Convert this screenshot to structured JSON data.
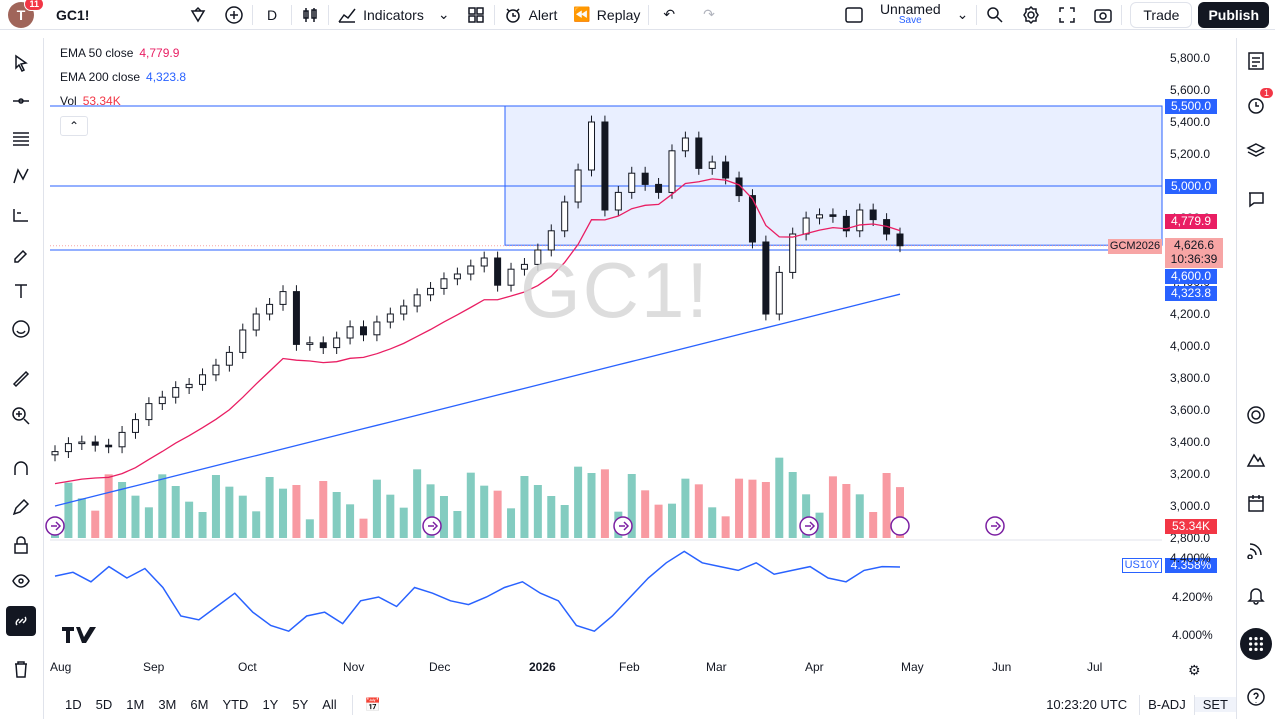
{
  "topbar": {
    "avatar_letter": "T",
    "notif_count": "11",
    "symbol": "GC1!",
    "interval": "D",
    "indicators_label": "Indicators",
    "alert_label": "Alert",
    "replay_label": "Replay",
    "layout_name": "Unnamed",
    "layout_save": "Save",
    "trade_label": "Trade",
    "publish_label": "Publish"
  },
  "legend": {
    "ema50_label": "EMA 50 close",
    "ema50_value": "4,779.9",
    "ema200_label": "EMA 200 close",
    "ema200_value": "4,323.8",
    "vol_label": "Vol",
    "vol_value": "53.34K"
  },
  "watermark": "GC1!",
  "price_ticks": [
    "5,800.0",
    "5,600.0",
    "5,400.0",
    "5,200.0",
    "5,000.0",
    "4,800.0",
    "4,600.0",
    "4,400.0",
    "4,200.0",
    "4,000.0",
    "3,800.0",
    "3,600.0",
    "3,400.0",
    "3,200.0",
    "3,000.0",
    "2,800.0"
  ],
  "price_tags": {
    "level_5500": "5,500.0",
    "level_5000": "5,000.0",
    "ema50": "4,779.9",
    "current_symbol": "GCM2026",
    "current_price": "4,626.6",
    "countdown": "10:36:39",
    "level_4600": "4,600.0",
    "ema200": "4,323.8",
    "volume": "53.34K"
  },
  "us10y": {
    "label": "US10Y",
    "value": "4.358%",
    "ticks": [
      "4.400%",
      "4.200%",
      "4.000%"
    ]
  },
  "time_labels": [
    "Aug",
    "Sep",
    "Oct",
    "Nov",
    "Dec",
    "2026",
    "Feb",
    "Mar",
    "Apr",
    "May",
    "Jun",
    "Jul"
  ],
  "bottom": {
    "ranges": [
      "1D",
      "5D",
      "1M",
      "3M",
      "6M",
      "YTD",
      "1Y",
      "5Y",
      "All"
    ],
    "clock": "10:23:20 UTC",
    "badj": "B-ADJ",
    "set": "SET"
  },
  "right_panel": {
    "alert_badge": "1"
  },
  "colors": {
    "up": "#089981",
    "down": "#f23645",
    "ema50": "#e91e63",
    "ema200": "#2962ff",
    "box": "#2962ff",
    "us10y": "#2962ff"
  },
  "chart_data": {
    "type": "candlestick",
    "symbol": "GC1!",
    "interval": "D",
    "x_labels": [
      "Aug",
      "Sep",
      "Oct",
      "Nov",
      "Dec",
      "2026",
      "Feb",
      "Mar",
      "Apr",
      "May",
      "Jun",
      "Jul"
    ],
    "y_axis_range": [
      2800,
      5900
    ],
    "horizontal_levels": [
      5500,
      5000,
      4600
    ],
    "ema50_last": 4779.9,
    "ema200_last": 4323.8,
    "last_price": 4626.6,
    "close_series_approx": [
      3340,
      3390,
      3400,
      3380,
      3370,
      3460,
      3540,
      3640,
      3680,
      3740,
      3760,
      3820,
      3880,
      3960,
      4100,
      4200,
      4260,
      4340,
      4010,
      4020,
      3990,
      4050,
      4120,
      4070,
      4150,
      4200,
      4250,
      4320,
      4360,
      4420,
      4450,
      4500,
      4550,
      4380,
      4480,
      4510,
      4600,
      4720,
      4900,
      5100,
      5400,
      4850,
      4960,
      5080,
      5010,
      4960,
      5220,
      5300,
      5110,
      5150,
      5050,
      4940,
      4650,
      4200,
      4460,
      4700,
      4800,
      4820,
      4810,
      4720,
      4850,
      4790,
      4700,
      4626.6
    ],
    "volume_last": "53.34K",
    "us10y_last": 4.358
  }
}
